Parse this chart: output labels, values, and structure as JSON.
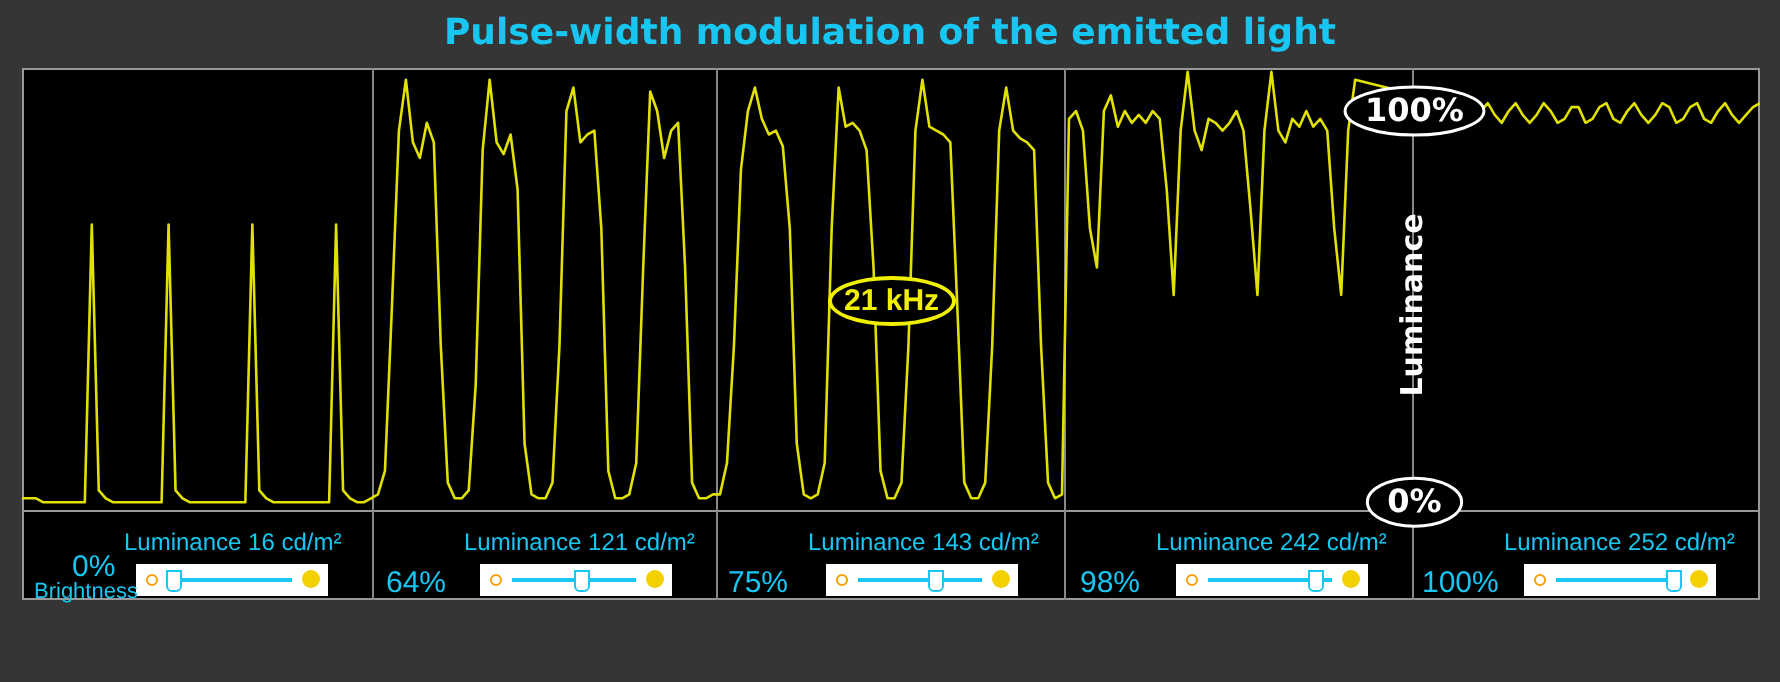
{
  "chart_data": {
    "type": "line",
    "title": "Pulse-width modulation of the emitted light",
    "ylabel": "Luminance",
    "color": "#e1e100",
    "marker": "none",
    "ylim": [
      -2,
      111
    ],
    "yticks": [
      {
        "value": 0,
        "label": "0%"
      },
      {
        "value": 100,
        "label": "100%"
      }
    ],
    "tick_labels": "y",
    "annotations": [
      "Luminance 16 cd/m²",
      "0%",
      "Brightness",
      "Luminance 121 cd/m²",
      "64%",
      "Luminance 143 cd/m²",
      "75%",
      "21 kHz",
      "Luminance 242 cd/m²",
      "98%",
      "Luminance 252 cd/m²",
      "100%"
    ],
    "categories": [
      null,
      null,
      null,
      null,
      null,
      null,
      null,
      null,
      null,
      null,
      null,
      null,
      null,
      null,
      null,
      null,
      null,
      null,
      null,
      null,
      null,
      null,
      null,
      null,
      null,
      null,
      null,
      null,
      null,
      null,
      null,
      null,
      null,
      null,
      null,
      null,
      null,
      null,
      null,
      null,
      null,
      null,
      null,
      null,
      null,
      null,
      null,
      null,
      null,
      null,
      null,
      null,
      null,
      null,
      null,
      null,
      null,
      null,
      null,
      null,
      null,
      null,
      null,
      null,
      null,
      null,
      null,
      null,
      null,
      null,
      null,
      null,
      null,
      null,
      null,
      null,
      null,
      null,
      null,
      null,
      null,
      null,
      null,
      null,
      null,
      null,
      null,
      null,
      null,
      null,
      null,
      null,
      null,
      null,
      null,
      null,
      null,
      null,
      null,
      null,
      null,
      null,
      null,
      null,
      null,
      null,
      null,
      null,
      null,
      null,
      null,
      null,
      null,
      null,
      null,
      null,
      null,
      null,
      null,
      null,
      null,
      null,
      null,
      null,
      null,
      null,
      null,
      null,
      null,
      null,
      null,
      null,
      null,
      null,
      null,
      null,
      null,
      null,
      null,
      null,
      null,
      null,
      null,
      null,
      null,
      null,
      null,
      null,
      null,
      null,
      null,
      null,
      null,
      null,
      null,
      null,
      null,
      null,
      null,
      null,
      null,
      null,
      null,
      null,
      null,
      null,
      null,
      null,
      null,
      null,
      null,
      null,
      null,
      null,
      null,
      null,
      null,
      null,
      null,
      null,
      null,
      null,
      null,
      null,
      null,
      null,
      null,
      null,
      null,
      null,
      null,
      null,
      null,
      null,
      null,
      null,
      null,
      null,
      null,
      null,
      null,
      null,
      null,
      null,
      null,
      null,
      null,
      null,
      null,
      null,
      null,
      null,
      null,
      null,
      null,
      null,
      null,
      null,
      null,
      null,
      null,
      null,
      null,
      null,
      null,
      null,
      null,
      null,
      null,
      null,
      null,
      null,
      null,
      null,
      null,
      null,
      null,
      null,
      null,
      null,
      null,
      null,
      null,
      null,
      null,
      null,
      null,
      null,
      null,
      null
    ],
    "values": [
      1,
      1,
      1,
      0,
      0,
      0,
      0,
      0,
      0,
      0,
      71,
      3,
      1,
      0,
      0,
      0,
      0,
      0,
      0,
      0,
      0,
      71,
      3,
      1,
      0,
      0,
      0,
      0,
      0,
      0,
      0,
      0,
      0,
      71,
      3,
      1,
      0,
      0,
      0,
      0,
      0,
      0,
      0,
      0,
      0,
      71,
      3,
      1,
      0,
      0,
      1,
      2,
      8,
      50,
      95,
      108,
      92,
      88,
      97,
      92,
      40,
      5,
      1,
      1,
      3,
      30,
      90,
      108,
      92,
      89,
      94,
      80,
      15,
      2,
      1,
      1,
      5,
      40,
      100,
      106,
      92,
      94,
      95,
      70,
      8,
      1,
      1,
      2,
      10,
      60,
      105,
      100,
      88,
      95,
      97,
      60,
      5,
      1,
      1,
      2,
      2,
      10,
      40,
      85,
      100,
      106,
      98,
      94,
      95,
      91,
      70,
      15,
      2,
      1,
      2,
      10,
      70,
      106,
      96,
      97,
      95,
      90,
      60,
      8,
      1,
      1,
      5,
      40,
      95,
      108,
      96,
      95,
      94,
      92,
      50,
      5,
      1,
      1,
      5,
      40,
      95,
      106,
      95,
      93,
      92,
      90,
      40,
      5,
      1,
      2,
      98,
      100,
      95,
      70,
      60,
      100,
      104,
      96,
      100,
      97,
      99,
      97,
      100,
      98,
      80,
      53,
      95,
      110,
      95,
      90,
      98,
      97,
      95,
      97,
      100,
      95,
      75,
      53,
      95,
      110,
      95,
      92,
      98,
      96,
      100,
      96,
      98,
      95,
      70,
      53,
      95,
      108,
      null,
      null,
      null,
      null,
      null,
      null,
      null,
      null,
      null,
      null,
      null,
      null,
      null,
      null,
      null,
      null,
      null,
      100,
      102,
      99,
      97,
      100,
      102,
      99,
      97,
      99,
      102,
      100,
      97,
      98,
      101,
      101,
      97,
      98,
      101,
      102,
      98,
      97,
      100,
      102,
      99,
      97,
      99,
      102,
      101,
      97,
      98,
      101,
      102,
      98,
      97,
      100,
      102,
      99,
      97,
      99,
      101,
      102
    ]
  }
}
